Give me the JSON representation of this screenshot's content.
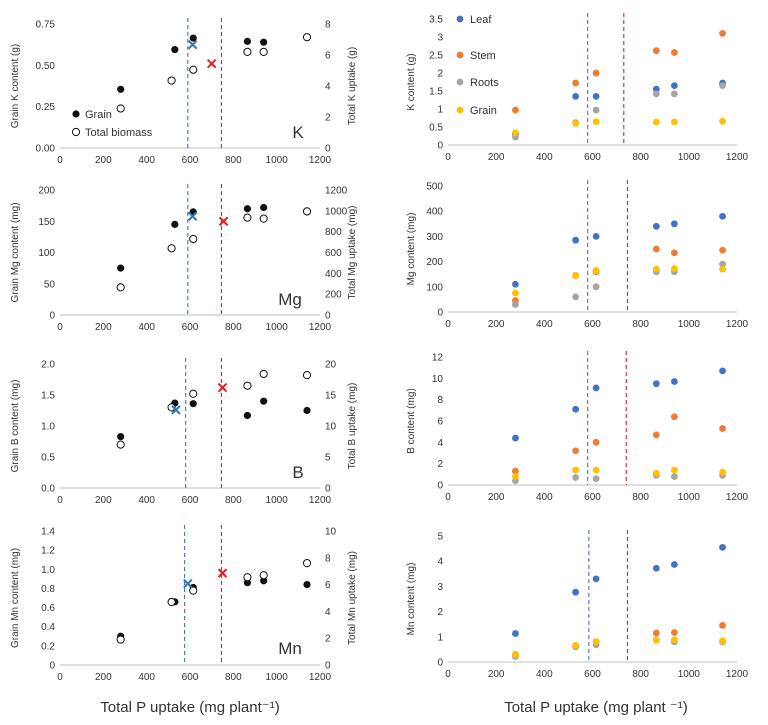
{
  "figure": {
    "xlabel_left": "Total P uptake (mg plant⁻¹)",
    "xlabel_right": "Total P uptake (mg plant ⁻¹)"
  },
  "styles": {
    "grain_color": "#111111",
    "leaf_color": "#4472C4",
    "stem_color": "#ED7D31",
    "roots_color": "#A5A5A5",
    "grainr_color": "#FFC000",
    "blue_mark_color": "#2E75B6",
    "red_mark_color": "#E02020",
    "blue_line_color": "#4472C4",
    "red_line_color": "#E02020"
  },
  "legend_left": {
    "grain": "Grain",
    "total": "Total biomass"
  },
  "legend_right": {
    "leaf": "Leaf",
    "stem": "Stem",
    "roots": "Roots",
    "grain": "Grain"
  },
  "chart_data": [
    {
      "id": "K-left",
      "type": "scatter",
      "element": "K",
      "ylabel": "Grain K content (g)",
      "y2label": "Total K uptake (g)",
      "xlim": [
        0,
        1200
      ],
      "ylim": [
        0,
        0.75
      ],
      "y2lim": [
        0,
        8
      ],
      "xticks": [
        "0",
        "200",
        "400",
        "600",
        "800",
        "1000",
        "1200"
      ],
      "yticks": [
        "0.00",
        "0.25",
        "0.50",
        "0.75"
      ],
      "y2ticks": [
        "0",
        "2",
        "4",
        "6",
        "8"
      ],
      "vlines": [
        590,
        745
      ],
      "series": [
        {
          "name": "Grain",
          "axis": "left",
          "x": [
            280,
            530,
            615,
            865,
            940,
            1140
          ],
          "y": [
            0.355,
            0.595,
            0.665,
            0.645,
            0.64,
            0.67
          ]
        },
        {
          "name": "Total biomass",
          "axis": "right",
          "x": [
            280,
            515,
            615,
            865,
            940,
            1140
          ],
          "y": [
            2.55,
            4.35,
            5.05,
            6.2,
            6.2,
            7.15
          ]
        }
      ],
      "markers": [
        {
          "x": 612,
          "y": 0.625,
          "color": "blue"
        },
        {
          "x": 700,
          "y": 0.51,
          "color": "red"
        }
      ]
    },
    {
      "id": "Mg-left",
      "type": "scatter",
      "element": "Mg",
      "ylabel": "Grain Mg content (mg)",
      "y2label": "Total Mg uptake (mg)",
      "xlim": [
        0,
        1200
      ],
      "ylim": [
        0,
        200
      ],
      "y2lim": [
        0,
        1200
      ],
      "xticks": [
        "0",
        "200",
        "400",
        "600",
        "800",
        "1000",
        "1200"
      ],
      "yticks": [
        "0",
        "50",
        "100",
        "150",
        "200"
      ],
      "y2ticks": [
        "0",
        "200",
        "400",
        "600",
        "800",
        "1000",
        "1200"
      ],
      "vlines": [
        590,
        745
      ],
      "series": [
        {
          "name": "Grain",
          "axis": "left",
          "x": [
            280,
            530,
            615,
            865,
            940,
            1140
          ],
          "y": [
            75,
            145,
            165,
            170,
            172,
            165
          ]
        },
        {
          "name": "Total biomass",
          "axis": "right",
          "x": [
            280,
            515,
            615,
            865,
            940,
            1140
          ],
          "y": [
            265,
            640,
            730,
            935,
            925,
            995
          ]
        }
      ],
      "markers": [
        {
          "x": 612,
          "y": 158,
          "color": "blue"
        },
        {
          "x": 755,
          "y": 150,
          "color": "red"
        }
      ]
    },
    {
      "id": "B-left",
      "type": "scatter",
      "element": "B",
      "ylabel": "Grain B content (mg)",
      "y2label": "Total B uptake (mg)",
      "xlim": [
        0,
        1200
      ],
      "ylim": [
        0,
        2.0
      ],
      "y2lim": [
        0,
        20
      ],
      "xticks": [
        "0",
        "200",
        "400",
        "600",
        "800",
        "1000",
        "1200"
      ],
      "yticks": [
        "0.0",
        "0.5",
        "1.0",
        "1.5",
        "2.0"
      ],
      "y2ticks": [
        "0",
        "5",
        "10",
        "15",
        "20"
      ],
      "vlines": [
        580,
        745
      ],
      "series": [
        {
          "name": "Grain",
          "axis": "left",
          "x": [
            280,
            530,
            615,
            865,
            940,
            1140
          ],
          "y": [
            0.83,
            1.37,
            1.36,
            1.17,
            1.4,
            1.25
          ]
        },
        {
          "name": "Total biomass",
          "axis": "right",
          "x": [
            280,
            515,
            615,
            865,
            940,
            1140
          ],
          "y": [
            7.0,
            13.0,
            15.2,
            16.5,
            18.4,
            18.2
          ]
        }
      ],
      "markers": [
        {
          "x": 535,
          "y": 1.26,
          "color": "blue"
        },
        {
          "x": 750,
          "y": 1.62,
          "color": "red"
        }
      ]
    },
    {
      "id": "Mn-left",
      "type": "scatter",
      "element": "Mn",
      "ylabel": "Grain Mn content (mg)",
      "y2label": "Total Mn uptake (mg)",
      "xlim": [
        0,
        1200
      ],
      "ylim": [
        0,
        1.4
      ],
      "y2lim": [
        0,
        10
      ],
      "xticks": [
        "0",
        "200",
        "400",
        "600",
        "800",
        "1000",
        "1200"
      ],
      "yticks": [
        "0",
        "0.2",
        "0.4",
        "0.6",
        "0.8",
        "1.0",
        "1.2",
        "1.4"
      ],
      "y2ticks": [
        "0",
        "2",
        "4",
        "6",
        "8",
        "10"
      ],
      "vlines": [
        575,
        745
      ],
      "series": [
        {
          "name": "Grain",
          "axis": "left",
          "x": [
            280,
            530,
            615,
            865,
            940,
            1140
          ],
          "y": [
            0.3,
            0.66,
            0.81,
            0.86,
            0.88,
            0.84
          ]
        },
        {
          "name": "Total biomass",
          "axis": "right",
          "x": [
            280,
            515,
            615,
            865,
            940,
            1140
          ],
          "y": [
            1.9,
            4.7,
            5.55,
            6.55,
            6.7,
            7.6
          ]
        }
      ],
      "markers": [
        {
          "x": 590,
          "y": 0.85,
          "color": "blue"
        },
        {
          "x": 750,
          "y": 0.96,
          "color": "red"
        }
      ]
    },
    {
      "id": "K-right",
      "type": "scatter",
      "ylabel": "K content (g)",
      "xlim": [
        0,
        1200
      ],
      "ylim": [
        0,
        3.5
      ],
      "xticks": [
        "0",
        "200",
        "400",
        "600",
        "800",
        "1000",
        "1200"
      ],
      "yticks": [
        "0",
        "0.5",
        "1",
        "1.5",
        "2",
        "2.5",
        "3",
        "3.5"
      ],
      "vlines": [
        580,
        730
      ],
      "series": [
        {
          "name": "Leaf",
          "x": [
            280,
            530,
            615,
            865,
            940,
            1140
          ],
          "y": [
            0.3,
            1.35,
            1.35,
            1.55,
            1.65,
            1.72
          ]
        },
        {
          "name": "Stem",
          "x": [
            280,
            530,
            615,
            865,
            940,
            1140
          ],
          "y": [
            0.97,
            1.72,
            2.0,
            2.62,
            2.57,
            3.1
          ]
        },
        {
          "name": "Roots",
          "x": [
            280,
            530,
            615,
            865,
            940,
            1140
          ],
          "y": [
            0.22,
            0.62,
            0.97,
            1.42,
            1.42,
            1.65
          ]
        },
        {
          "name": "Grain",
          "x": [
            280,
            530,
            615,
            865,
            940,
            1140
          ],
          "y": [
            0.34,
            0.6,
            0.65,
            0.64,
            0.64,
            0.66
          ]
        }
      ]
    },
    {
      "id": "Mg-right",
      "type": "scatter",
      "ylabel": "Mg content (mg)",
      "xlim": [
        0,
        1200
      ],
      "ylim": [
        0,
        500
      ],
      "xticks": [
        "0",
        "200",
        "400",
        "600",
        "800",
        "1000",
        "1200"
      ],
      "yticks": [
        "0",
        "100",
        "200",
        "300",
        "400",
        "500"
      ],
      "vlines": [
        580,
        745
      ],
      "series": [
        {
          "name": "Leaf",
          "x": [
            280,
            530,
            615,
            865,
            940,
            1140
          ],
          "y": [
            110,
            285,
            300,
            340,
            350,
            380
          ]
        },
        {
          "name": "Stem",
          "x": [
            280,
            530,
            615,
            865,
            940,
            1140
          ],
          "y": [
            45,
            145,
            160,
            250,
            235,
            245
          ]
        },
        {
          "name": "Roots",
          "x": [
            280,
            530,
            615,
            865,
            940,
            1140
          ],
          "y": [
            30,
            60,
            100,
            160,
            160,
            190
          ]
        },
        {
          "name": "Grain",
          "x": [
            280,
            530,
            615,
            865,
            940,
            1140
          ],
          "y": [
            75,
            145,
            165,
            170,
            172,
            170
          ]
        }
      ]
    },
    {
      "id": "B-right",
      "type": "scatter",
      "ylabel": "B content (mg)",
      "xlim": [
        0,
        1200
      ],
      "ylim": [
        0,
        12
      ],
      "xticks": [
        "0",
        "200",
        "400",
        "600",
        "800",
        "1000",
        "1200"
      ],
      "yticks": [
        "0",
        "2",
        "4",
        "6",
        "8",
        "10",
        "12"
      ],
      "vlines": [
        580,
        740
      ],
      "series": [
        {
          "name": "Leaf",
          "x": [
            280,
            530,
            615,
            865,
            940,
            1140
          ],
          "y": [
            4.4,
            7.1,
            9.1,
            9.5,
            9.7,
            10.7
          ]
        },
        {
          "name": "Stem",
          "x": [
            280,
            530,
            615,
            865,
            940,
            1140
          ],
          "y": [
            1.3,
            3.2,
            4.0,
            4.7,
            6.4,
            5.3
          ]
        },
        {
          "name": "Roots",
          "x": [
            280,
            530,
            615,
            865,
            940,
            1140
          ],
          "y": [
            0.4,
            0.7,
            0.6,
            0.9,
            0.8,
            0.9
          ]
        },
        {
          "name": "Grain",
          "x": [
            280,
            530,
            615,
            865,
            940,
            1140
          ],
          "y": [
            0.8,
            1.4,
            1.4,
            1.1,
            1.4,
            1.2
          ]
        }
      ]
    },
    {
      "id": "Mn-right",
      "type": "scatter",
      "ylabel": "Mn content (mg)",
      "xlim": [
        0,
        1200
      ],
      "ylim": [
        0,
        5
      ],
      "xticks": [
        "0",
        "200",
        "400",
        "600",
        "800",
        "1000",
        "1200"
      ],
      "yticks": [
        "0",
        "1",
        "2",
        "3",
        "4",
        "5"
      ],
      "vlines": [
        585,
        745
      ],
      "series": [
        {
          "name": "Leaf",
          "x": [
            280,
            530,
            615,
            865,
            940,
            1140
          ],
          "y": [
            1.13,
            2.77,
            3.3,
            3.72,
            3.87,
            4.55
          ]
        },
        {
          "name": "Stem",
          "x": [
            280,
            530,
            615,
            865,
            940,
            1140
          ],
          "y": [
            0.3,
            0.65,
            0.8,
            1.15,
            1.17,
            1.45
          ]
        },
        {
          "name": "Roots",
          "x": [
            280,
            530,
            615,
            865,
            940,
            1140
          ],
          "y": [
            0.22,
            0.6,
            0.68,
            0.88,
            0.8,
            0.8
          ]
        },
        {
          "name": "Grain",
          "x": [
            280,
            530,
            615,
            865,
            940,
            1140
          ],
          "y": [
            0.3,
            0.66,
            0.81,
            0.86,
            0.88,
            0.84
          ]
        }
      ]
    }
  ]
}
